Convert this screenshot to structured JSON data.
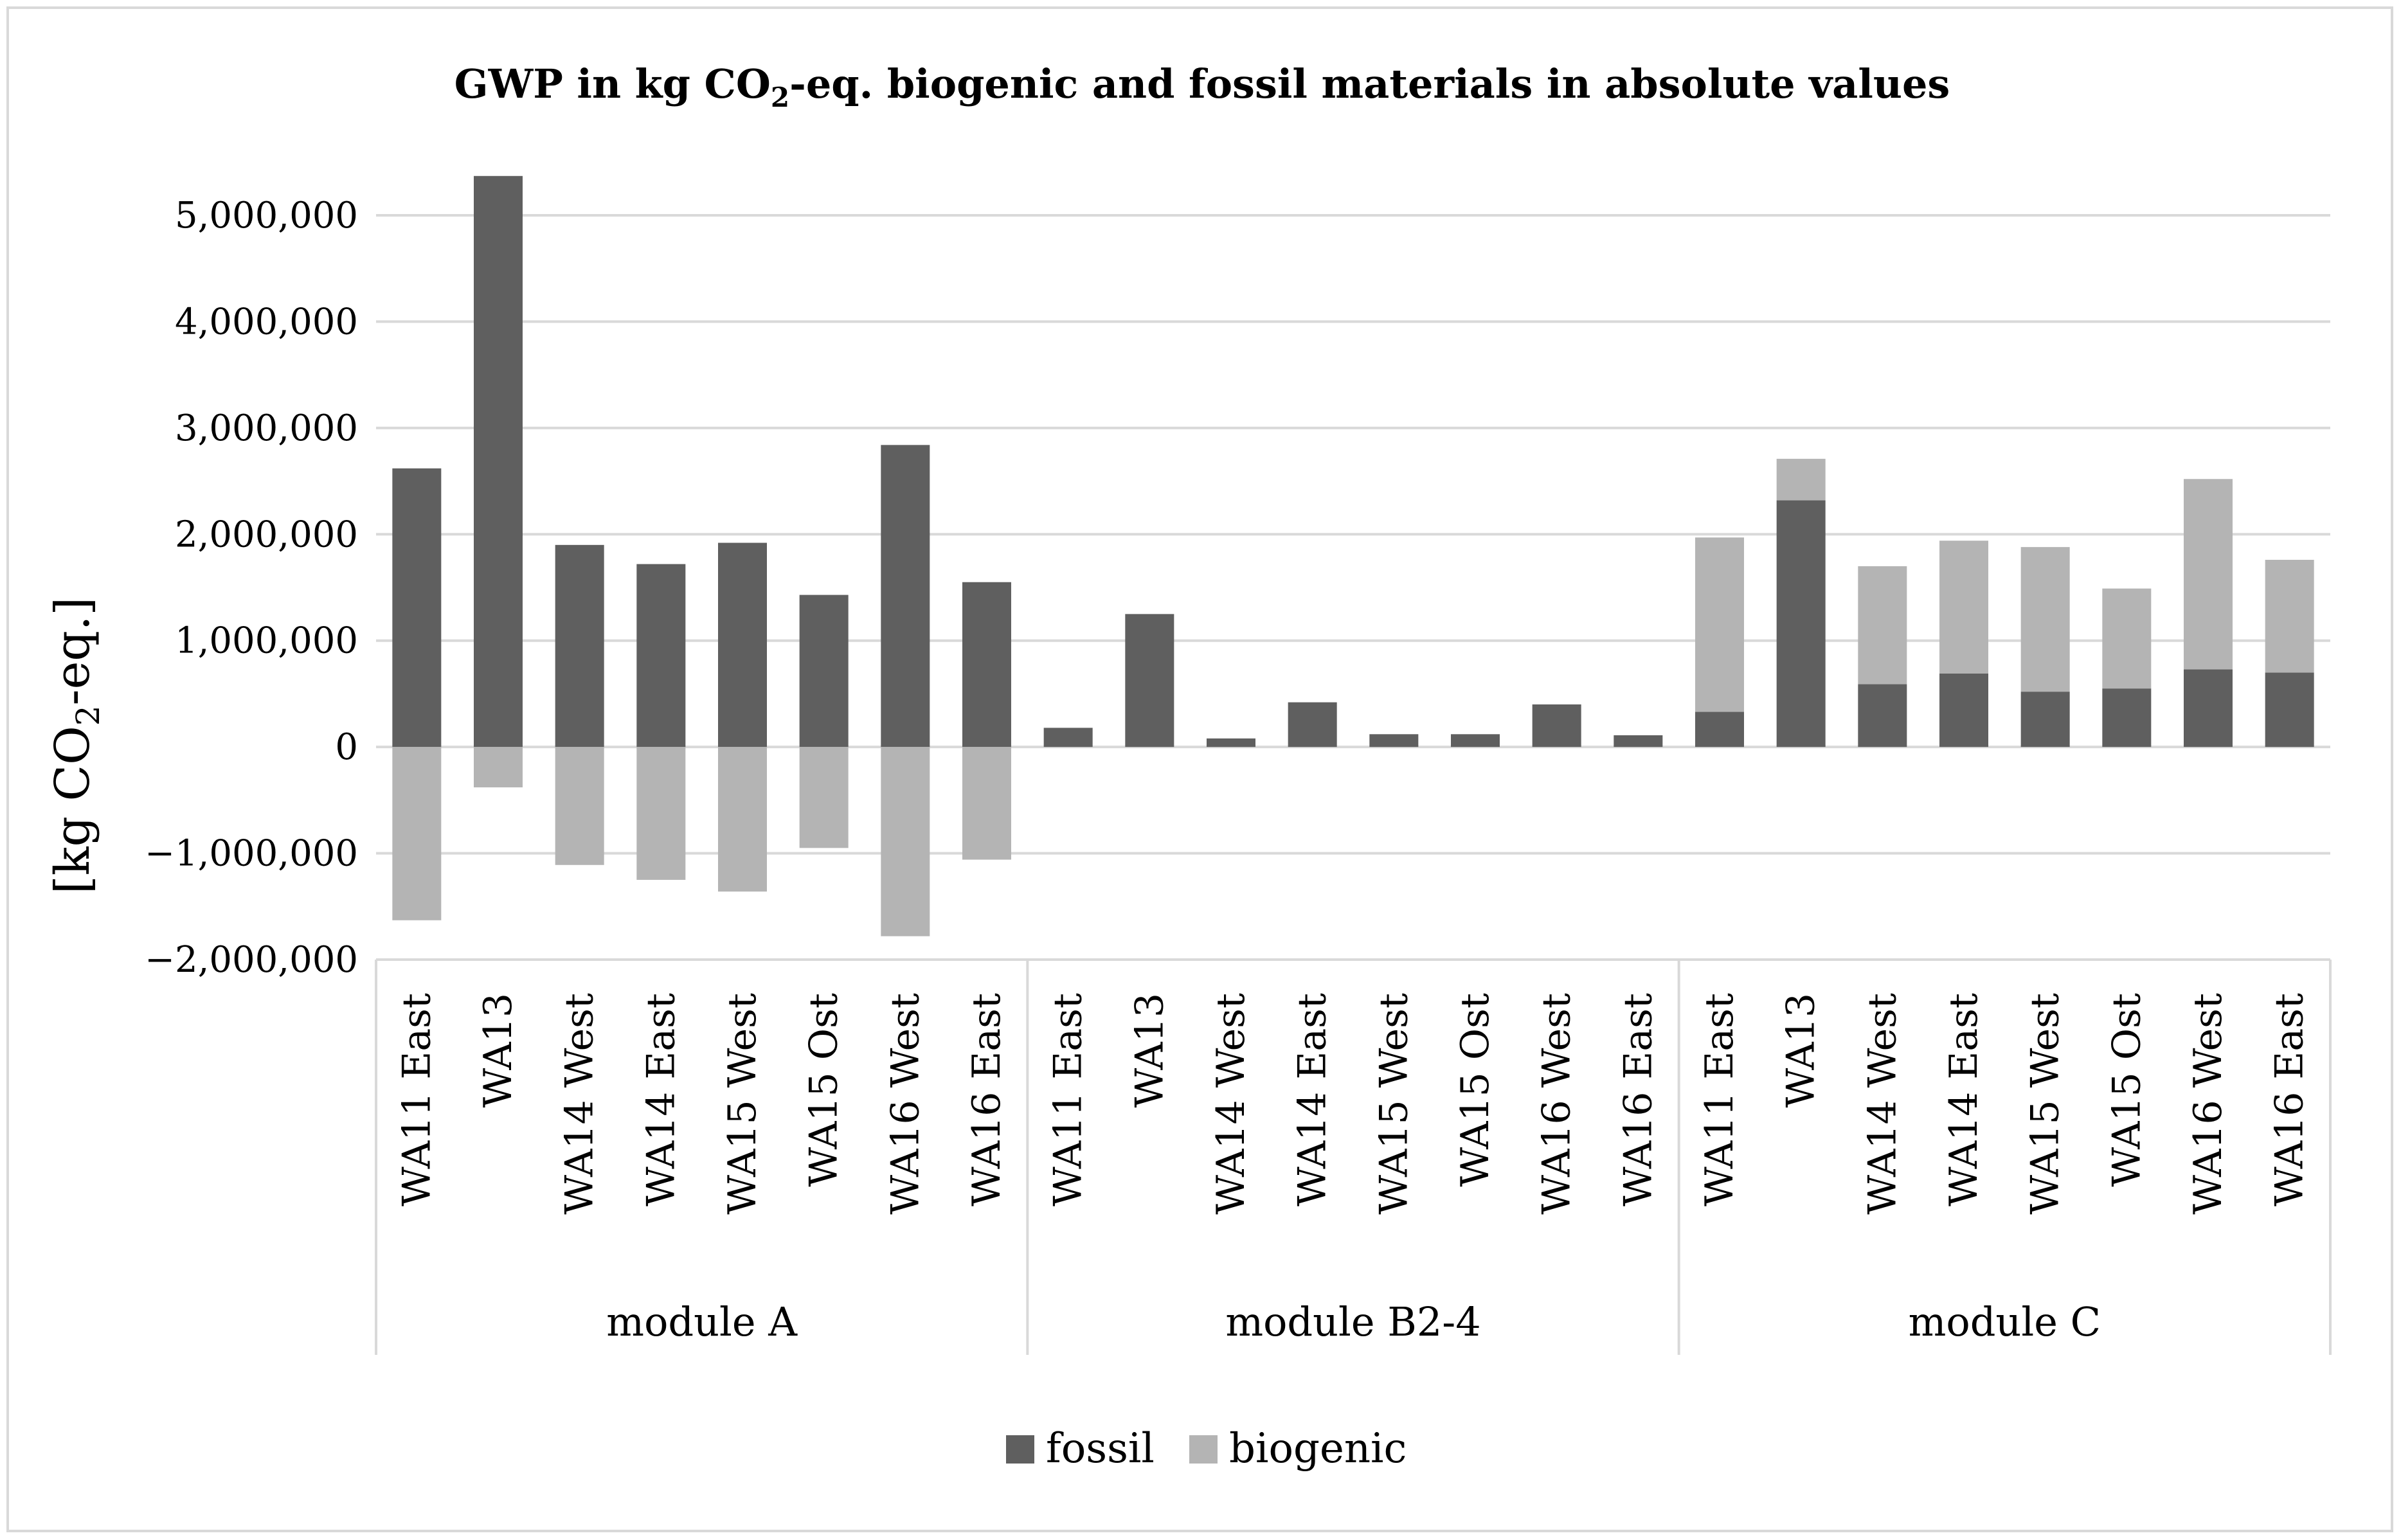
{
  "chart_data": {
    "type": "bar",
    "stacked": true,
    "title_parts": [
      "GWP in kg CO",
      "2",
      "-eq. biogenic and fossil materials in absolute values"
    ],
    "ylabel_parts": [
      "[kg CO",
      "2",
      "-eq.]"
    ],
    "ylim": [
      -2000000,
      5400000
    ],
    "yticks": [
      -2000000,
      -1000000,
      0,
      1000000,
      2000000,
      3000000,
      4000000,
      5000000
    ],
    "ytick_labels": [
      "−2,000,000",
      "−1,000,000",
      "0",
      "1,000,000",
      "2,000,000",
      "3,000,000",
      "4,000,000",
      "5,000,000"
    ],
    "grid": true,
    "legend_position": "bottom",
    "groups": [
      {
        "name": "module A",
        "categories": [
          "WA11 East",
          "WA13",
          "WA14 West",
          "WA14 East",
          "WA15 West",
          "WA15 Ost",
          "WA16 West",
          "WA16 East"
        ]
      },
      {
        "name": "module B2-4",
        "categories": [
          "WA11 East",
          "WA13",
          "WA14 West",
          "WA14 East",
          "WA15 West",
          "WA15 Ost",
          "WA16 West",
          "WA16 East"
        ]
      },
      {
        "name": "module C",
        "categories": [
          "WA11 East",
          "WA13",
          "WA14 West",
          "WA14 East",
          "WA15 West",
          "WA15 Ost",
          "WA16 West",
          "WA16 East"
        ]
      }
    ],
    "series": [
      {
        "name": "fossil",
        "color": "#5f5f5f",
        "values": [
          2620000,
          5370000,
          1900000,
          1720000,
          1920000,
          1430000,
          2840000,
          1550000,
          180000,
          1250000,
          80000,
          420000,
          120000,
          120000,
          400000,
          110000,
          330000,
          2320000,
          590000,
          690000,
          520000,
          550000,
          730000,
          700000
        ]
      },
      {
        "name": "biogenic",
        "color": "#b4b4b4",
        "values": [
          -1630000,
          -380000,
          -1110000,
          -1250000,
          -1360000,
          -950000,
          -1780000,
          -1060000,
          0,
          0,
          0,
          0,
          0,
          0,
          0,
          0,
          1640000,
          390000,
          1110000,
          1250000,
          1360000,
          940000,
          1790000,
          1060000
        ]
      }
    ]
  }
}
